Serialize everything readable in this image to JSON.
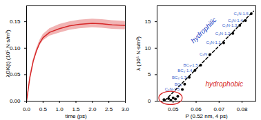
{
  "chart_data": [
    {
      "type": "line",
      "x_label": "time (ps)",
      "y_label": "λGK(t) (10⁵ N·s/m³)",
      "x": [
        0,
        0.1,
        0.2,
        0.3,
        0.4,
        0.5,
        0.7,
        1.0,
        1.3,
        1.6,
        2.0,
        2.3,
        2.6,
        3.0
      ],
      "series": [
        {
          "color": "#d62728",
          "values": [
            0,
            0.045,
            0.075,
            0.095,
            0.11,
            0.12,
            0.13,
            0.137,
            0.142,
            0.145,
            0.147,
            0.146,
            0.144,
            0.143
          ],
          "lower": [
            0,
            0.043,
            0.072,
            0.091,
            0.105,
            0.114,
            0.123,
            0.129,
            0.134,
            0.137,
            0.139,
            0.138,
            0.136,
            0.135
          ],
          "upper": [
            0,
            0.047,
            0.078,
            0.099,
            0.115,
            0.126,
            0.137,
            0.145,
            0.15,
            0.153,
            0.155,
            0.154,
            0.152,
            0.151
          ]
        }
      ],
      "xlim": [
        0,
        3
      ],
      "xticks": [
        {
          "value": 0,
          "label": "0.0"
        },
        {
          "value": 0.5,
          "label": "0.5"
        },
        {
          "value": 1,
          "label": "1.0"
        },
        {
          "value": 1.5,
          "label": "1.5"
        },
        {
          "value": 2,
          "label": "2.0"
        },
        {
          "value": 2.5,
          "label": "2.5"
        },
        {
          "value": 3,
          "label": "3.0"
        }
      ],
      "ylim": [
        0,
        0.18
      ],
      "yticks": [
        {
          "value": 0,
          "label": "0.00"
        },
        {
          "value": 0.05,
          "label": "0.05"
        },
        {
          "value": 0.1,
          "label": "0.10"
        },
        {
          "value": 0.15,
          "label": "0.15"
        }
      ]
    },
    {
      "type": "scatter",
      "x_label": "P (0.52 nm, 4 ps)",
      "y_label": "λ (10⁵ N·s/m³)",
      "color": "#000000",
      "label_color": "#3a5fcd",
      "x": [
        0.084,
        0.0815,
        0.079,
        0.076,
        0.072,
        0.066,
        0.062,
        0.0595,
        0.057,
        0.055,
        0.054,
        0.046,
        0.048,
        0.049,
        0.05,
        0.051,
        0.052
      ],
      "values": [
        16.5,
        15.2,
        14.3,
        12.8,
        11.0,
        8.8,
        6.8,
        5.8,
        4.5,
        3.2,
        2.2,
        0.3,
        0.5,
        0.2,
        0.6,
        0.4,
        0.9
      ],
      "point_labels": [
        "C₃N-1.5",
        "C₃N-1.4",
        "C₃N-1.3",
        "C₃N-1.2",
        "C₃N-1.1",
        "C₂N",
        "BC₃-1.5",
        "BC₃-1.4",
        "BC₃-1.3",
        "BC₃",
        "C₂N-1.5",
        null,
        null,
        null,
        null,
        null,
        null
      ],
      "fit_line": {
        "x": [
          0.045,
          0.085
        ],
        "y": [
          -0.5,
          17
        ],
        "line_style": "dashed"
      },
      "annotations": [
        {
          "text": "hydrophilic",
          "color": "#1f3fbf"
        },
        {
          "text": "hydrophobic",
          "color": "#d62728"
        }
      ],
      "xlim": [
        0.043,
        0.086
      ],
      "xticks": [
        0.05,
        0.06,
        0.07,
        0.08
      ],
      "ylim": [
        0,
        18
      ],
      "yticks": [
        0,
        5,
        10,
        15
      ]
    }
  ]
}
